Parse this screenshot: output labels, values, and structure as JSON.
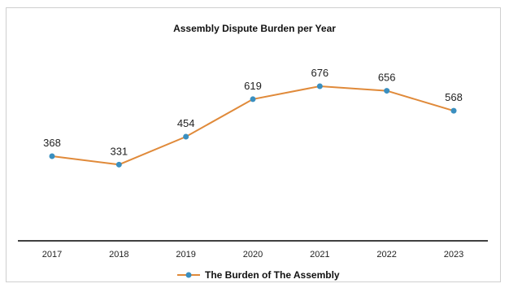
{
  "chart_data": {
    "type": "line",
    "title": "Assembly Dispute Burden per Year",
    "categories": [
      "2017",
      "2018",
      "2019",
      "2020",
      "2021",
      "2022",
      "2023"
    ],
    "series": [
      {
        "name": "The Burden of The Assembly",
        "values": [
          368,
          331,
          454,
          619,
          676,
          656,
          568
        ]
      }
    ],
    "data_labels": true,
    "grid": false,
    "legend": "bottom",
    "colors": {
      "line": "#e08a3a",
      "marker": "#3a8fc0",
      "axis": "#000000"
    }
  }
}
